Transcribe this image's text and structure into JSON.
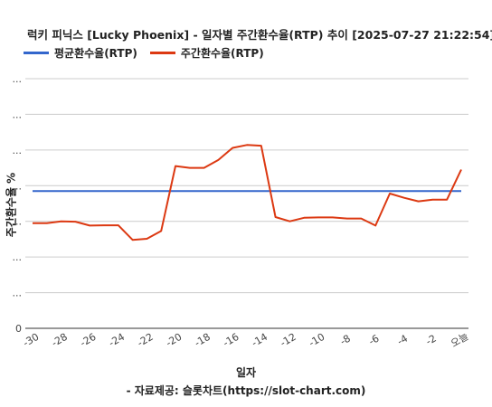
{
  "chart_data": {
    "type": "line",
    "title": "럭키 피닉스 [Lucky Phoenix] - 일자별 주간환수율(RTP) 추이 [2025-07-27 21:22:54]",
    "xlabel": "일자",
    "ylabel": "주간환수율 %",
    "source": "- 자료제공: 슬롯차트(https://slot-chart.com)",
    "x_ticks": [
      "-30",
      "-28",
      "-26",
      "-24",
      "-22",
      "-20",
      "-18",
      "-16",
      "-14",
      "-12",
      "-10",
      "-8",
      "-6",
      "-4",
      "-2",
      "오늘"
    ],
    "y_tick_labels": [
      "0",
      "...",
      "...",
      "...",
      "...",
      "...",
      "...",
      "..."
    ],
    "legend_position": "top-left",
    "grid": true,
    "xlim": [
      -30,
      0
    ],
    "ylim": [
      0,
      7
    ],
    "series": [
      {
        "name": "평균환수율(RTP)",
        "color": "#3366cc",
        "x": [
          -30,
          0
        ],
        "y": [
          3.85,
          3.85
        ]
      },
      {
        "name": "주간환수율(RTP)",
        "color": "#dc3912",
        "x": [
          -30,
          -29,
          -28,
          -27,
          -26,
          -25,
          -24,
          -23,
          -22,
          -21,
          -20,
          -19,
          -18,
          -17,
          -16,
          -15,
          -14,
          -13,
          -12,
          -11,
          -10,
          -9,
          -8,
          -7,
          -6,
          -5,
          -4,
          -3,
          -2,
          -1,
          0
        ],
        "y": [
          2.95,
          2.95,
          3.0,
          2.99,
          2.88,
          2.89,
          2.89,
          2.48,
          2.51,
          2.73,
          4.55,
          4.5,
          4.5,
          4.72,
          5.06,
          5.14,
          5.12,
          3.12,
          3.0,
          3.1,
          3.11,
          3.11,
          3.08,
          3.08,
          2.88,
          3.78,
          3.66,
          3.56,
          3.61,
          3.61,
          4.45
        ]
      }
    ]
  }
}
